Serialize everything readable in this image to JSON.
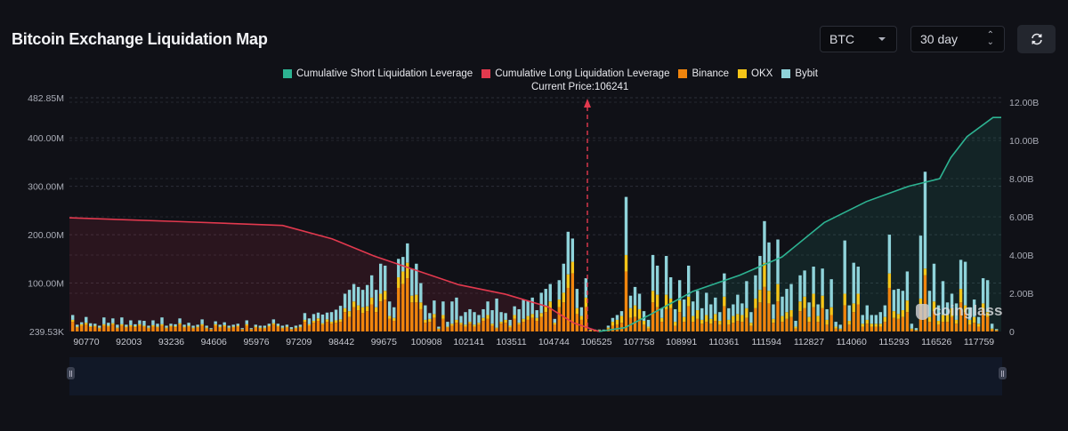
{
  "header": {
    "title": "Bitcoin Exchange Liquidation Map",
    "coin_select": "BTC",
    "range_select": "30 day",
    "refresh_icon": "refresh-icon"
  },
  "watermark": "coinglass",
  "colors": {
    "short_cum": "#2db392",
    "long_cum": "#e2394e",
    "binance": "#f0850d",
    "okx": "#f5c518",
    "bybit": "#8fd3da",
    "background": "#101117"
  },
  "chart_data": {
    "type": "bar",
    "title": "Bitcoin Exchange Liquidation Map",
    "current_price_label": "Current Price:106241",
    "current_price": 106241,
    "legend": [
      {
        "name": "Cumulative Short Liquidation Leverage",
        "color": "#2db392"
      },
      {
        "name": "Cumulative Long Liquidation Leverage",
        "color": "#e2394e"
      },
      {
        "name": "Binance",
        "color": "#f0850d"
      },
      {
        "name": "OKX",
        "color": "#f5c518"
      },
      {
        "name": "Bybit",
        "color": "#8fd3da"
      }
    ],
    "legend_position": "top-center",
    "xlabel": "",
    "x_ticks": [
      "90770",
      "92003",
      "93236",
      "94606",
      "95976",
      "97209",
      "98442",
      "99675",
      "100908",
      "102141",
      "103511",
      "104744",
      "106525",
      "107758",
      "108991",
      "110361",
      "111594",
      "112827",
      "114060",
      "115293",
      "116526",
      "117759"
    ],
    "x_range": [
      90770,
      118000
    ],
    "y_left": {
      "ticks": [
        "239.53K",
        "100.00M",
        "200.00M",
        "300.00M",
        "400.00M",
        "482.85M"
      ],
      "range_millions": [
        0,
        482.85
      ]
    },
    "y_right": {
      "ticks": [
        "0",
        "2.00B",
        "4.00B",
        "6.00B",
        "8.00B",
        "10.00B",
        "12.00B"
      ],
      "range_billions": [
        0,
        12
      ]
    },
    "grid": true,
    "bars_unit": "millions USD",
    "bars": {
      "binance": [
        20,
        8,
        12,
        14,
        9,
        10,
        6,
        12,
        10,
        14,
        6,
        12,
        8,
        10,
        9,
        12,
        10,
        6,
        10,
        8,
        12,
        6,
        10,
        9,
        14,
        8,
        10,
        6,
        8,
        12,
        6,
        4,
        12,
        8,
        10,
        6,
        8,
        10,
        4,
        12,
        4,
        8,
        6,
        6,
        10,
        14,
        10,
        6,
        8,
        4,
        6,
        8,
        20,
        12,
        18,
        22,
        14,
        20,
        16,
        18,
        20,
        40,
        30,
        50,
        44,
        38,
        42,
        56,
        40,
        62,
        66,
        26,
        22,
        90,
        98,
        110,
        60,
        60,
        46,
        18,
        20,
        28,
        4,
        26,
        8,
        12,
        18,
        14,
        10,
        16,
        10,
        14,
        22,
        26,
        12,
        6,
        16,
        18,
        8,
        26,
        14,
        20,
        24,
        28,
        22,
        30,
        40,
        48,
        14,
        50,
        60,
        90,
        120,
        36,
        24,
        50,
        2,
        2,
        2,
        2,
        6,
        12,
        14,
        18,
        124,
        28,
        30,
        26,
        14,
        6,
        60,
        50,
        20,
        46,
        48,
        12,
        40,
        20,
        52,
        20,
        26,
        16,
        20,
        16,
        22,
        14,
        52,
        14,
        18,
        22,
        20,
        28,
        12,
        48,
        60,
        92,
        58,
        18,
        62,
        20,
        26,
        30,
        6,
        42,
        48,
        20,
        50,
        20,
        48,
        14,
        34,
        6,
        4,
        54,
        14,
        40,
        56,
        10,
        16,
        10,
        10,
        10,
        20,
        90,
        28,
        26,
        30,
        40,
        4,
        2,
        52,
        116,
        20,
        42,
        14,
        20,
        20,
        30,
        16,
        60,
        40,
        14,
        18,
        10,
        44,
        30,
        4,
        2
      ],
      "okx": [
        4,
        2,
        3,
        4,
        2,
        2,
        2,
        3,
        2,
        3,
        2,
        3,
        2,
        3,
        2,
        3,
        2,
        2,
        3,
        2,
        3,
        2,
        2,
        2,
        3,
        2,
        2,
        2,
        2,
        3,
        2,
        1,
        3,
        2,
        3,
        2,
        2,
        2,
        1,
        3,
        1,
        2,
        2,
        2,
        2,
        3,
        2,
        2,
        2,
        1,
        2,
        2,
        4,
        3,
        4,
        5,
        3,
        5,
        4,
        5,
        5,
        8,
        12,
        12,
        10,
        12,
        10,
        14,
        10,
        16,
        18,
        6,
        6,
        22,
        26,
        32,
        14,
        16,
        14,
        6,
        6,
        8,
        2,
        8,
        2,
        4,
        6,
        4,
        4,
        4,
        4,
        4,
        6,
        8,
        4,
        2,
        4,
        6,
        4,
        8,
        4,
        6,
        8,
        8,
        6,
        8,
        12,
        14,
        4,
        16,
        20,
        28,
        24,
        12,
        8,
        20,
        1,
        1,
        1,
        1,
        2,
        8,
        10,
        14,
        34,
        20,
        24,
        20,
        8,
        4,
        24,
        26,
        8,
        30,
        20,
        8,
        24,
        10,
        20,
        12,
        18,
        8,
        14,
        10,
        14,
        8,
        20,
        10,
        14,
        14,
        14,
        20,
        6,
        20,
        26,
        50,
        26,
        8,
        36,
        12,
        14,
        14,
        4,
        20,
        24,
        10,
        28,
        12,
        26,
        10,
        16,
        4,
        2,
        24,
        8,
        18,
        22,
        6,
        8,
        6,
        6,
        6,
        10,
        30,
        14,
        10,
        14,
        24,
        2,
        1,
        16,
        14,
        10,
        20,
        8,
        14,
        14,
        18,
        8,
        28,
        14,
        10,
        12,
        6,
        14,
        10,
        2,
        1
      ],
      "bybit": [
        10,
        4,
        4,
        12,
        6,
        4,
        4,
        14,
        6,
        10,
        6,
        14,
        4,
        10,
        4,
        8,
        10,
        4,
        10,
        6,
        14,
        4,
        4,
        4,
        10,
        4,
        6,
        4,
        4,
        10,
        4,
        2,
        6,
        4,
        6,
        4,
        4,
        4,
        2,
        8,
        2,
        4,
        4,
        4,
        4,
        8,
        4,
        4,
        4,
        4,
        4,
        4,
        14,
        12,
        14,
        12,
        18,
        14,
        20,
        22,
        28,
        30,
        44,
        36,
        38,
        36,
        44,
        46,
        36,
        62,
        52,
        30,
        22,
        38,
        30,
        40,
        56,
        64,
        40,
        30,
        12,
        28,
        4,
        28,
        10,
        46,
        46,
        14,
        26,
        26,
        26,
        16,
        18,
        28,
        28,
        60,
        20,
        14,
        12,
        18,
        28,
        40,
        32,
        34,
        16,
        42,
        36,
        36,
        8,
        40,
        60,
        88,
        48,
        40,
        18,
        40,
        1,
        1,
        1,
        1,
        4,
        8,
        10,
        10,
        120,
        26,
        38,
        32,
        20,
        14,
        74,
        60,
        20,
        80,
        44,
        26,
        42,
        36,
        64,
        30,
        40,
        24,
        46,
        30,
        34,
        18,
        48,
        24,
        24,
        40,
        24,
        56,
        22,
        48,
        70,
        86,
        100,
        30,
        92,
        40,
        48,
        54,
        12,
        54,
        54,
        30,
        56,
        24,
        56,
        22,
        58,
        10,
        8,
        110,
        32,
        84,
        56,
        18,
        30,
        18,
        18,
        24,
        24,
        80,
        44,
        52,
        40,
        60,
        10,
        4,
        130,
        200,
        54,
        78,
        32,
        70,
        26,
        30,
        34,
        60,
        90,
        26,
        36,
        14,
        52,
        66,
        10,
        2
      ]
    },
    "cumulative_long_billions": {
      "x": [
        90770,
        94000,
        97000,
        98442,
        99675,
        100908,
        102141,
        103511,
        104744,
        105500,
        106241
      ],
      "y": [
        5.95,
        5.75,
        5.55,
        4.85,
        3.95,
        3.2,
        2.45,
        1.95,
        1.3,
        0.45,
        0
      ]
    },
    "cumulative_short_billions": {
      "x": [
        106241,
        107000,
        107758,
        108991,
        110361,
        111594,
        112827,
        114060,
        115293,
        116200,
        116526,
        117000,
        117759
      ],
      "y": [
        0,
        0.2,
        0.9,
        2.1,
        2.95,
        3.9,
        5.7,
        6.8,
        7.6,
        8.0,
        9.1,
        10.2,
        11.2
      ]
    }
  }
}
